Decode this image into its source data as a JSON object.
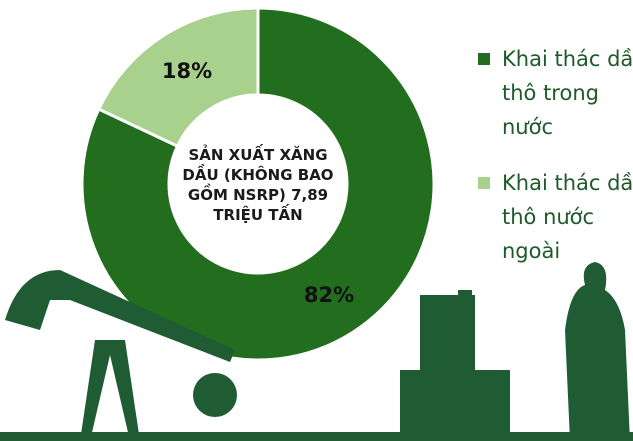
{
  "chart_data": {
    "type": "donut",
    "title": "SẢN XUẤT XĂNG DẦU (KHÔNG BAO GỒM NSRP) 7,89 TRIỆU TẤN",
    "categories": [
      "Khai thác dầu thô trong nước",
      "Khai thác dầu thô nước ngoài"
    ],
    "values": [
      82,
      18
    ],
    "value_labels": [
      "82%",
      "18%"
    ],
    "colors": [
      "#226e1e",
      "#a9d18e"
    ],
    "legend": "right"
  }
}
